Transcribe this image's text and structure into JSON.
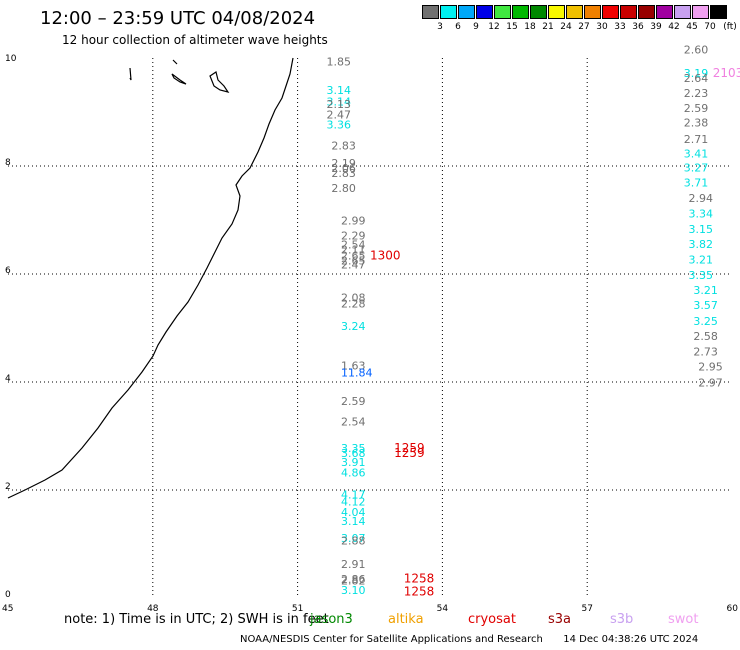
{
  "title": "12:00 – 23:59 UTC 04/08/2024",
  "subtitle": "12 hour collection of altimeter wave heights",
  "legend": {
    "unit": "(ft)",
    "items": [
      {
        "color": "#707070",
        "label": ""
      },
      {
        "color": "#00f0f0",
        "label": "3"
      },
      {
        "color": "#00a8f8",
        "label": "6"
      },
      {
        "color": "#0000e8",
        "label": "9"
      },
      {
        "color": "#40e840",
        "label": "12"
      },
      {
        "color": "#00b800",
        "label": "15"
      },
      {
        "color": "#008800",
        "label": "18"
      },
      {
        "color": "#f8f800",
        "label": "21"
      },
      {
        "color": "#f0c000",
        "label": "24"
      },
      {
        "color": "#f08000",
        "label": "27"
      },
      {
        "color": "#f00000",
        "label": "30"
      },
      {
        "color": "#c80000",
        "label": "33"
      },
      {
        "color": "#980000",
        "label": "36"
      },
      {
        "color": "#a000a0",
        "label": "39"
      },
      {
        "color": "#c8a0f0",
        "label": "42"
      },
      {
        "color": "#f0a0f0",
        "label": "45"
      },
      {
        "color": "#000000",
        "label": "70"
      }
    ]
  },
  "axes": {
    "x_ticks": [
      {
        "value": 45,
        "label": "45"
      },
      {
        "value": 48,
        "label": "48"
      },
      {
        "value": 51,
        "label": "51"
      },
      {
        "value": 54,
        "label": "54"
      },
      {
        "value": 57,
        "label": "57"
      },
      {
        "value": 60,
        "label": "60"
      }
    ],
    "y_ticks": [
      {
        "value": 0,
        "label": "0"
      },
      {
        "value": 2,
        "label": "2"
      },
      {
        "value": 4,
        "label": "4"
      },
      {
        "value": 6,
        "label": "6"
      },
      {
        "value": 8,
        "label": "8"
      },
      {
        "value": 10,
        "label": "10"
      }
    ]
  },
  "observations": [
    {
      "lon": 51.6,
      "lat": 9.86,
      "text": "1.85",
      "color": "#707070"
    },
    {
      "lon": 51.6,
      "lat": 9.33,
      "text": "3.14",
      "color": "#00e0e0"
    },
    {
      "lon": 51.6,
      "lat": 9.12,
      "text": "3.14",
      "color": "#00e0e0"
    },
    {
      "lon": 51.6,
      "lat": 9.07,
      "text": "2.13",
      "color": "#707070"
    },
    {
      "lon": 51.6,
      "lat": 8.88,
      "text": "2.47",
      "color": "#707070"
    },
    {
      "lon": 51.6,
      "lat": 8.69,
      "text": "3.36",
      "color": "#00e0e0"
    },
    {
      "lon": 51.7,
      "lat": 8.31,
      "text": "2.83",
      "color": "#707070"
    },
    {
      "lon": 51.7,
      "lat": 7.98,
      "text": "2.19",
      "color": "#707070"
    },
    {
      "lon": 51.7,
      "lat": 7.89,
      "text": "2.06",
      "color": "#707070"
    },
    {
      "lon": 51.7,
      "lat": 7.8,
      "text": "2.83",
      "color": "#707070"
    },
    {
      "lon": 51.7,
      "lat": 7.52,
      "text": "2.80",
      "color": "#707070"
    },
    {
      "lon": 51.9,
      "lat": 6.92,
      "text": "2.99",
      "color": "#707070"
    },
    {
      "lon": 51.9,
      "lat": 6.64,
      "text": "2.29",
      "color": "#707070"
    },
    {
      "lon": 51.9,
      "lat": 6.47,
      "text": "2.54",
      "color": "#707070"
    },
    {
      "lon": 51.9,
      "lat": 6.38,
      "text": "2.11",
      "color": "#707070"
    },
    {
      "lon": 51.9,
      "lat": 6.27,
      "text": "2.65",
      "color": "#707070"
    },
    {
      "lon": 51.9,
      "lat": 6.18,
      "text": "2.65",
      "color": "#707070"
    },
    {
      "lon": 51.9,
      "lat": 6.1,
      "text": "2.47",
      "color": "#707070"
    },
    {
      "lon": 52.5,
      "lat": 6.27,
      "text": "1300",
      "color": "#e00000"
    },
    {
      "lon": 51.9,
      "lat": 5.49,
      "text": "2.08",
      "color": "#707070"
    },
    {
      "lon": 51.9,
      "lat": 5.38,
      "text": "2.28",
      "color": "#707070"
    },
    {
      "lon": 51.9,
      "lat": 4.96,
      "text": "3.24",
      "color": "#00e0e0"
    },
    {
      "lon": 51.9,
      "lat": 4.23,
      "text": "1.63",
      "color": "#707070"
    },
    {
      "lon": 51.9,
      "lat": 4.1,
      "text": "11.84",
      "color": "#0060ff"
    },
    {
      "lon": 51.9,
      "lat": 3.57,
      "text": "2.59",
      "color": "#707070"
    },
    {
      "lon": 51.9,
      "lat": 3.19,
      "text": "2.54",
      "color": "#707070"
    },
    {
      "lon": 51.9,
      "lat": 2.7,
      "text": "3.35",
      "color": "#00e0e0"
    },
    {
      "lon": 51.9,
      "lat": 2.61,
      "text": "3.68",
      "color": "#00e0e0"
    },
    {
      "lon": 51.9,
      "lat": 2.44,
      "text": "3.91",
      "color": "#00e0e0"
    },
    {
      "lon": 51.9,
      "lat": 2.25,
      "text": "4.86",
      "color": "#00e0e0"
    },
    {
      "lon": 51.9,
      "lat": 1.84,
      "text": "4.17",
      "color": "#00e0e0"
    },
    {
      "lon": 51.9,
      "lat": 1.71,
      "text": "4.12",
      "color": "#00e0e0"
    },
    {
      "lon": 51.9,
      "lat": 1.52,
      "text": "4.04",
      "color": "#00e0e0"
    },
    {
      "lon": 51.9,
      "lat": 1.35,
      "text": "3.14",
      "color": "#00e0e0"
    },
    {
      "lon": 51.9,
      "lat": 1.04,
      "text": "3.07",
      "color": "#00e0e0"
    },
    {
      "lon": 51.9,
      "lat": 0.99,
      "text": "2.88",
      "color": "#707070"
    },
    {
      "lon": 51.9,
      "lat": 0.56,
      "text": "2.91",
      "color": "#707070"
    },
    {
      "lon": 51.9,
      "lat": 0.28,
      "text": "2.86",
      "color": "#707070"
    },
    {
      "lon": 51.9,
      "lat": 0.25,
      "text": "2.82",
      "color": "#707070"
    },
    {
      "lon": 51.9,
      "lat": 0.07,
      "text": "3.10",
      "color": "#00e0e0"
    },
    {
      "lon": 53.0,
      "lat": 2.7,
      "text": "1259",
      "color": "#e00000"
    },
    {
      "lon": 53.0,
      "lat": 2.61,
      "text": "1259",
      "color": "#e00000"
    },
    {
      "lon": 53.2,
      "lat": 0.29,
      "text": "1258",
      "color": "#e00000"
    },
    {
      "lon": 53.2,
      "lat": 0.05,
      "text": "1258",
      "color": "#e00000"
    },
    {
      "lon": 59.0,
      "lat": 10.08,
      "text": "2.60",
      "color": "#707070"
    },
    {
      "lon": 59.0,
      "lat": 9.65,
      "text": "3.19",
      "color": "#00e0e0"
    },
    {
      "lon": 59.6,
      "lat": 9.65,
      "text": "2103",
      "color": "#f080e0"
    },
    {
      "lon": 59.0,
      "lat": 9.56,
      "text": "2.64",
      "color": "#707070"
    },
    {
      "lon": 59.0,
      "lat": 9.28,
      "text": "2.23",
      "color": "#707070"
    },
    {
      "lon": 59.0,
      "lat": 9.0,
      "text": "2.59",
      "color": "#707070"
    },
    {
      "lon": 59.0,
      "lat": 8.73,
      "text": "2.38",
      "color": "#707070"
    },
    {
      "lon": 59.0,
      "lat": 8.43,
      "text": "2.71",
      "color": "#707070"
    },
    {
      "lon": 59.0,
      "lat": 8.16,
      "text": "3.41",
      "color": "#00e0e0"
    },
    {
      "lon": 59.0,
      "lat": 7.9,
      "text": "3.27",
      "color": "#00e0e0"
    },
    {
      "lon": 59.0,
      "lat": 7.62,
      "text": "3.71",
      "color": "#00e0e0"
    },
    {
      "lon": 59.1,
      "lat": 7.33,
      "text": "2.94",
      "color": "#707070"
    },
    {
      "lon": 59.1,
      "lat": 7.05,
      "text": "3.34",
      "color": "#00e0e0"
    },
    {
      "lon": 59.1,
      "lat": 6.76,
      "text": "3.15",
      "color": "#00e0e0"
    },
    {
      "lon": 59.1,
      "lat": 6.48,
      "text": "3.82",
      "color": "#00e0e0"
    },
    {
      "lon": 59.1,
      "lat": 6.19,
      "text": "3.21",
      "color": "#00e0e0"
    },
    {
      "lon": 59.1,
      "lat": 5.91,
      "text": "3.35",
      "color": "#00e0e0"
    },
    {
      "lon": 59.2,
      "lat": 5.63,
      "text": "3.21",
      "color": "#00e0e0"
    },
    {
      "lon": 59.2,
      "lat": 5.35,
      "text": "3.57",
      "color": "#00e0e0"
    },
    {
      "lon": 59.2,
      "lat": 5.06,
      "text": "3.25",
      "color": "#00e0e0"
    },
    {
      "lon": 59.2,
      "lat": 4.78,
      "text": "2.58",
      "color": "#707070"
    },
    {
      "lon": 59.2,
      "lat": 4.49,
      "text": "2.73",
      "color": "#707070"
    },
    {
      "lon": 59.3,
      "lat": 4.21,
      "text": "2.95",
      "color": "#707070"
    },
    {
      "lon": 59.3,
      "lat": 3.92,
      "text": "2.97",
      "color": "#707070"
    }
  ],
  "note": "note: 1) Time is in UTC; 2) SWH is in feet",
  "satellites": [
    {
      "name": "jason3",
      "color": "#008800"
    },
    {
      "name": "altika",
      "color": "#f0a000"
    },
    {
      "name": "cryosat",
      "color": "#e00000"
    },
    {
      "name": "s3a",
      "color": "#980000"
    },
    {
      "name": "s3b",
      "color": "#c8a0f0"
    },
    {
      "name": "swot",
      "color": "#f0a0f0"
    }
  ],
  "footer_left": "NOAA/NESDIS Center for Satellite Applications and Research",
  "footer_right": "14 Dec 04:38:26 UTC 2024"
}
